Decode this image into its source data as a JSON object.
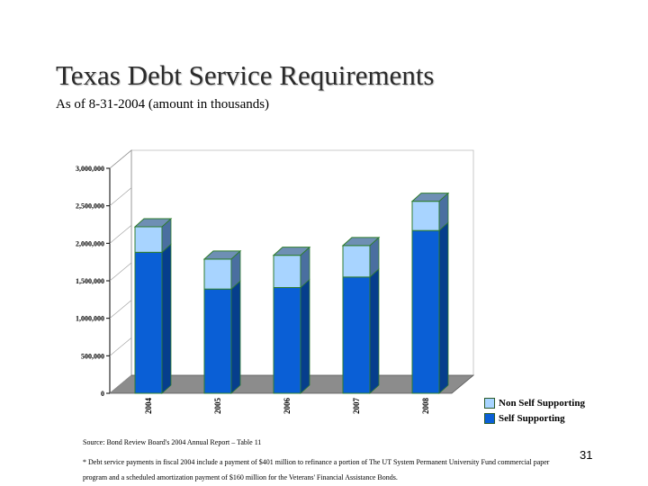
{
  "slide": {
    "title": "Texas Debt Service Requirements",
    "subtitle": "As of 8-31-2004 (amount in thousands)",
    "source": "Source: Bond Review Board's 2004 Annual Report – Table 11",
    "footnote": "* Debt service payments in fiscal 2004 include a payment of $401 million to refinance a portion of The UT System Permanent University Fund commercial paper program and a scheduled amortization payment of $160 million for the Veterans' Financial Assistance Bonds.",
    "page_number": "31"
  },
  "chart_data": {
    "type": "bar",
    "stacked": true,
    "categories": [
      "2004",
      "2005",
      "2006",
      "2007",
      "2008"
    ],
    "series": [
      {
        "name": "Self Supporting",
        "values": [
          1880000,
          1390000,
          1410000,
          1550000,
          2170000
        ],
        "color": "#0a5fd6"
      },
      {
        "name": "Non Self Supporting",
        "values": [
          340000,
          400000,
          430000,
          420000,
          390000
        ],
        "color": "#a8d4ff"
      }
    ],
    "ylim": [
      0,
      3000000
    ],
    "yticks": [
      "0",
      "500,000",
      "1,000,000",
      "1,500,000",
      "2,000,000",
      "2,500,000",
      "3,000,000"
    ],
    "grid": false,
    "legend": "bottom-right",
    "colors": {
      "outline": "#2f7d2f",
      "floor": "#8c8c8c",
      "side_self": "#063e8c",
      "side_non": "#4a6fa0",
      "top": "#6e8fb4"
    }
  }
}
